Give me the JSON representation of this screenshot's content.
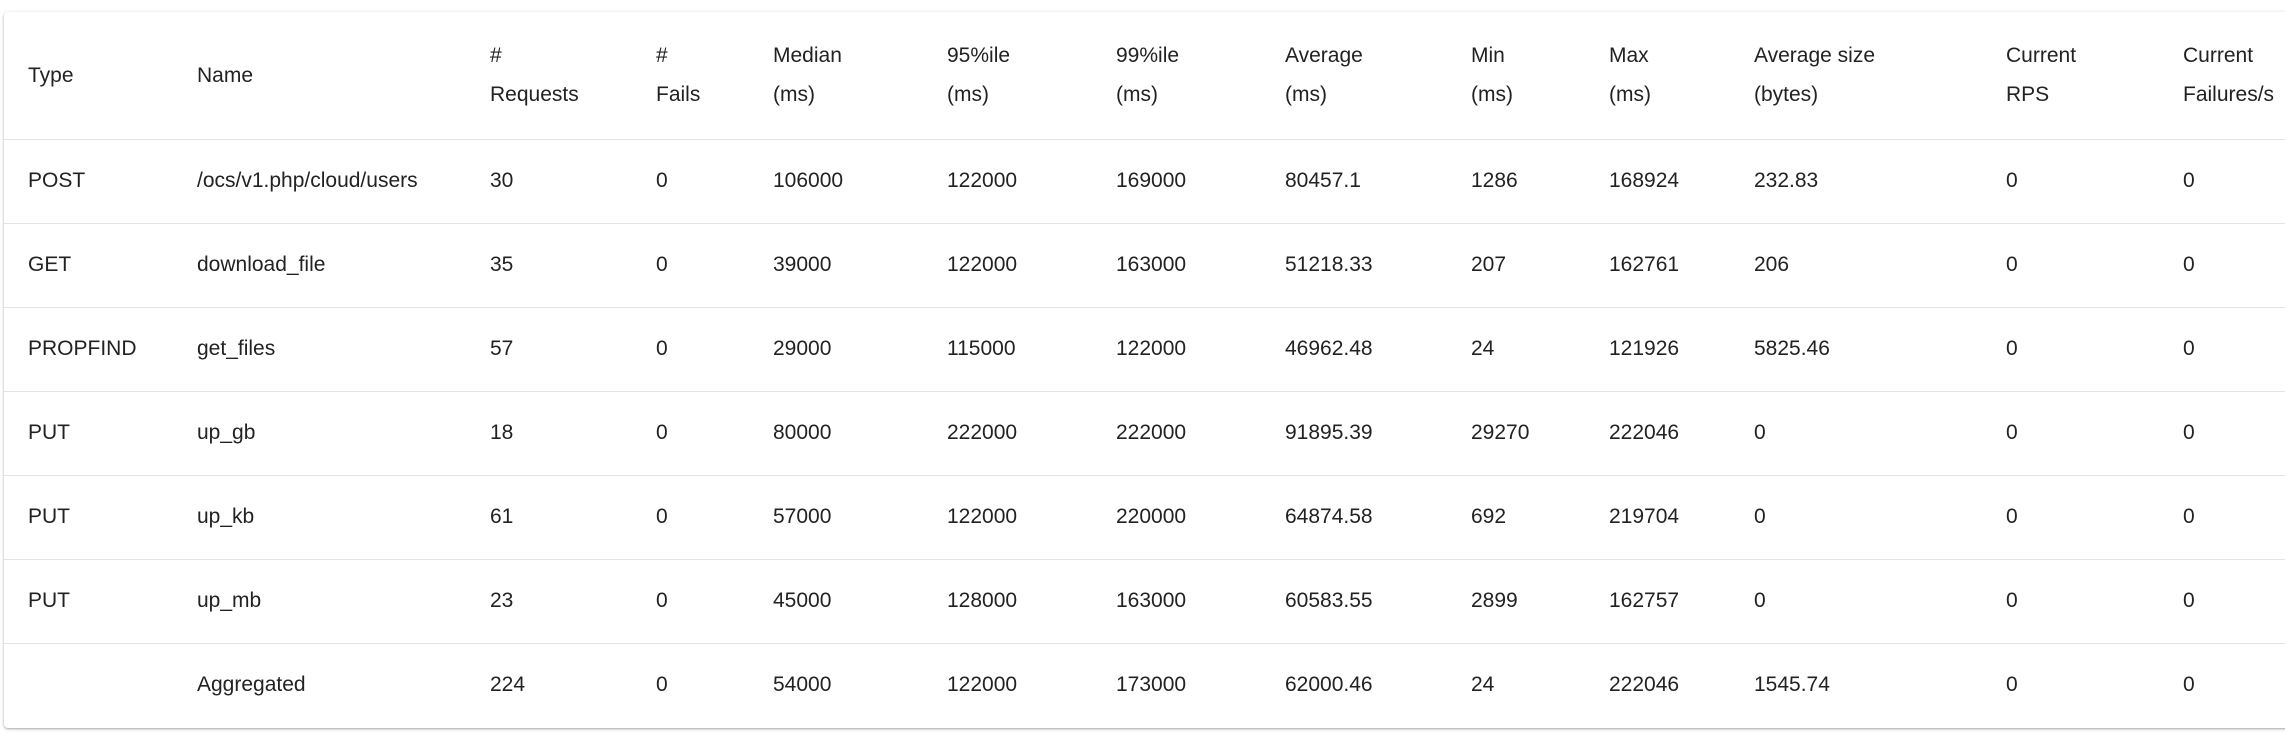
{
  "columns": [
    [
      "Type"
    ],
    [
      "Name"
    ],
    [
      "#",
      "Requests"
    ],
    [
      "#",
      "Fails"
    ],
    [
      "Median",
      "(ms)"
    ],
    [
      "95%ile",
      "(ms)"
    ],
    [
      "99%ile",
      "(ms)"
    ],
    [
      "Average",
      "(ms)"
    ],
    [
      "Min",
      "(ms)"
    ],
    [
      "Max",
      "(ms)"
    ],
    [
      "Average size",
      "(bytes)"
    ],
    [
      "Current",
      "RPS"
    ],
    [
      "Current",
      "Failures/s"
    ]
  ],
  "rows": [
    [
      "POST",
      "/ocs/v1.php/cloud/users",
      "30",
      "0",
      "106000",
      "122000",
      "169000",
      "80457.1",
      "1286",
      "168924",
      "232.83",
      "0",
      "0"
    ],
    [
      "GET",
      "download_file",
      "35",
      "0",
      "39000",
      "122000",
      "163000",
      "51218.33",
      "207",
      "162761",
      "206",
      "0",
      "0"
    ],
    [
      "PROPFIND",
      "get_files",
      "57",
      "0",
      "29000",
      "115000",
      "122000",
      "46962.48",
      "24",
      "121926",
      "5825.46",
      "0",
      "0"
    ],
    [
      "PUT",
      "up_gb",
      "18",
      "0",
      "80000",
      "222000",
      "222000",
      "91895.39",
      "29270",
      "222046",
      "0",
      "0",
      "0"
    ],
    [
      "PUT",
      "up_kb",
      "61",
      "0",
      "57000",
      "122000",
      "220000",
      "64874.58",
      "692",
      "219704",
      "0",
      "0",
      "0"
    ],
    [
      "PUT",
      "up_mb",
      "23",
      "0",
      "45000",
      "128000",
      "163000",
      "60583.55",
      "2899",
      "162757",
      "0",
      "0",
      "0"
    ],
    [
      "",
      "Aggregated",
      "224",
      "0",
      "54000",
      "122000",
      "173000",
      "62000.46",
      "24",
      "222046",
      "1545.74",
      "0",
      "0"
    ]
  ]
}
